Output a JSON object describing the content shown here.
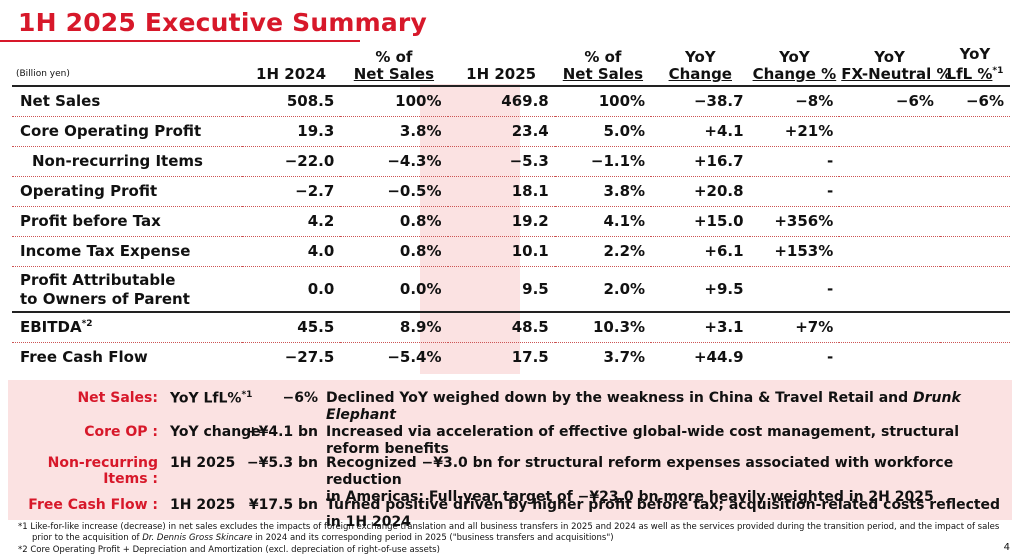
{
  "title": "1H 2025 Executive Summary",
  "table": {
    "unit": "(Billion yen)",
    "headers": {
      "h2024": "1H 2024",
      "pct2024_line1": "% of",
      "pct2024_line2": "Net Sales",
      "h2025": "1H 2025",
      "pct2025_line1": "% of",
      "pct2025_line2": "Net Sales",
      "yoy_line1": "YoY",
      "yoy_line2": "Change",
      "yoypct_line1": "YoY",
      "yoypct_line2": "Change %",
      "fxn_line1": "YoY",
      "fxn_line2": "FX-Neutral %",
      "lfl_line1": "YoY",
      "lfl_line2": "LfL %",
      "lfl_sup": "*1"
    },
    "rows": [
      {
        "label": "Net Sales",
        "v2024": "508.5",
        "p2024": "100%",
        "v2025": "469.8",
        "p2025": "100%",
        "yoy": "−38.7",
        "yoypct": "−8%",
        "fxn": "−6%",
        "lfl": "−6%"
      },
      {
        "label": "Core Operating Profit",
        "v2024": "19.3",
        "p2024": "3.8%",
        "v2025": "23.4",
        "p2025": "5.0%",
        "yoy": "+4.1",
        "yoypct": "+21%"
      },
      {
        "label": "Non-recurring Items",
        "v2024": "−22.0",
        "p2024": "−4.3%",
        "v2025": "−5.3",
        "p2025": "−1.1%",
        "yoy": "+16.7",
        "yoypct": "-"
      },
      {
        "label": "Operating Profit",
        "v2024": "−2.7",
        "p2024": "−0.5%",
        "v2025": "18.1",
        "p2025": "3.8%",
        "yoy": "+20.8",
        "yoypct": "-"
      },
      {
        "label": "Profit before Tax",
        "v2024": "4.2",
        "p2024": "0.8%",
        "v2025": "19.2",
        "p2025": "4.1%",
        "yoy": "+15.0",
        "yoypct": "+356%"
      },
      {
        "label": "Income Tax Expense",
        "v2024": "4.0",
        "p2024": "0.8%",
        "v2025": "10.1",
        "p2025": "2.2%",
        "yoy": "+6.1",
        "yoypct": "+153%"
      },
      {
        "label_line1": "Profit Attributable",
        "label_line2": "to Owners of Parent",
        "v2024": "0.0",
        "p2024": "0.0%",
        "v2025": "9.5",
        "p2025": "2.0%",
        "yoy": "+9.5",
        "yoypct": "-"
      },
      {
        "label": "EBITDA",
        "label_sup": "*2",
        "v2024": "45.5",
        "p2024": "8.9%",
        "v2025": "48.5",
        "p2025": "10.3%",
        "yoy": "+3.1",
        "yoypct": "+7%"
      },
      {
        "label": "Free Cash Flow",
        "v2024": "−27.5",
        "p2024": "−5.4%",
        "v2025": "17.5",
        "p2025": "3.7%",
        "yoy": "+44.9",
        "yoypct": "-"
      }
    ]
  },
  "summary": [
    {
      "key": "Net Sales:",
      "metric": "YoY LfL%",
      "metric_sup": "*1",
      "value": "−6%",
      "text": "Declined YoY weighed down by the weakness in China & Travel Retail and ",
      "text_italic": "Drunk Elephant"
    },
    {
      "key": "Core OP :",
      "metric": "YoY change",
      "value": "+¥4.1 bn",
      "text": "Increased via acceleration of effective global-wide cost management, structural reform benefits"
    },
    {
      "key": "Non-recurring Items :",
      "metric": "1H 2025",
      "value": "−¥5.3 bn",
      "text_line1": "Recognized −¥3.0 bn for structural reform expenses associated with workforce reduction",
      "text_line2": "in Americas; Full-year target of −¥23.0 bn more heavily weighted in 2H 2025"
    },
    {
      "key": "Free Cash Flow :",
      "metric": "1H 2025",
      "value": "¥17.5 bn",
      "text": "Turned positive driven by higher profit before tax; acquisition-related costs reflected in 1H 2024"
    }
  ],
  "footnotes": {
    "n1_line1": "*1 Like-for-like increase (decrease) in net sales excludes the impacts of foreign exchange translation and all business transfers in 2025 and 2024 as well as the services provided during the transition period, and the impact of sales",
    "n1_line2_pre": "prior to the acquisition of ",
    "n1_line2_italic": "Dr. Dennis Gross Skincare",
    "n1_line2_post": " in 2024 and its corresponding period in 2025 (\"business transfers and acquisitions\")",
    "n2": "*2 Core Operating Profit + Depreciation and Amortization (excl. depreciation of right-of-use assets)"
  },
  "page_number": "4",
  "colors": {
    "accent": "#d7182a",
    "band": "#fbe2e2"
  }
}
